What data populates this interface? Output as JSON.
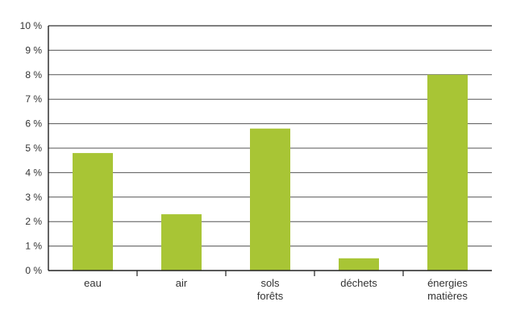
{
  "chart_data": {
    "type": "bar",
    "title": "",
    "xlabel": "",
    "ylabel": "",
    "categories": [
      [
        "eau"
      ],
      [
        "air"
      ],
      [
        "sols",
        "forêts"
      ],
      [
        "déchets"
      ],
      [
        "énergies",
        "matières"
      ]
    ],
    "values": [
      4.8,
      2.3,
      5.8,
      0.5,
      8.0
    ],
    "ylim": [
      0,
      10
    ],
    "y_ticks": [
      0,
      1,
      2,
      3,
      4,
      5,
      6,
      7,
      8,
      9,
      10
    ],
    "y_tick_labels": [
      "0 %",
      "1 %",
      "2 %",
      "3 %",
      "4 %",
      "5 %",
      "6 %",
      "7 %",
      "8 %",
      "9 %",
      "10 %"
    ],
    "grid": true,
    "bar_color": "#a8c535",
    "grid_color": "#555555",
    "axis_color": "#222222"
  }
}
